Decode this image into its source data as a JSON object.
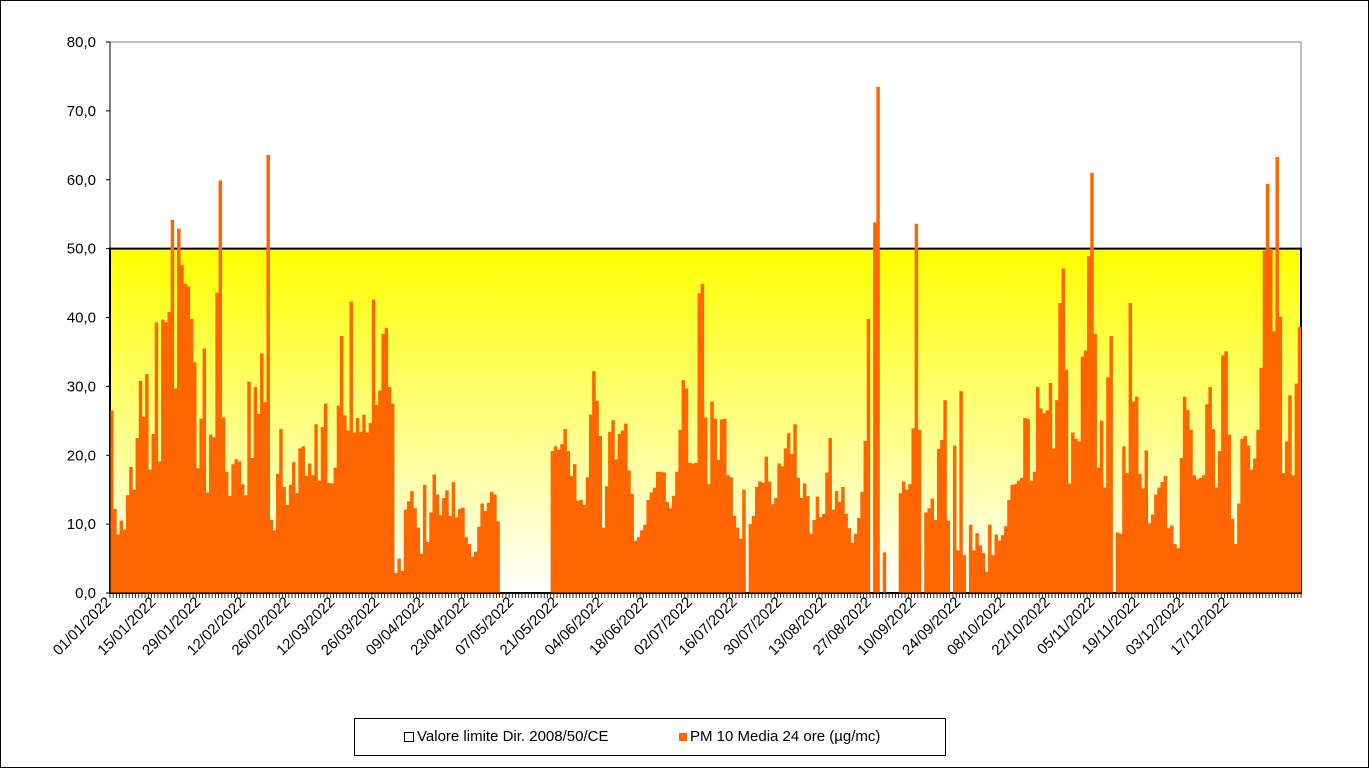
{
  "chart_data": {
    "type": "bar",
    "title": "",
    "xlabel": "",
    "ylabel": "",
    "ylim": [
      0,
      80
    ],
    "y_ticks": [
      "0,0",
      "10,0",
      "20,0",
      "30,0",
      "40,0",
      "50,0",
      "60,0",
      "70,0",
      "80,0"
    ],
    "x_tick_labels": [
      "01/01/2022",
      "15/01/2022",
      "29/01/2022",
      "12/02/2022",
      "26/02/2022",
      "12/03/2022",
      "26/03/2022",
      "09/04/2022",
      "23/04/2022",
      "07/05/2022",
      "21/05/2022",
      "04/06/2022",
      "18/06/2022",
      "02/07/2022",
      "16/07/2022",
      "30/07/2022",
      "13/08/2022",
      "27/08/2022",
      "10/09/2022",
      "24/09/2022",
      "08/10/2022",
      "22/10/2022",
      "05/11/2022",
      "19/11/2022",
      "03/12/2022",
      "17/12/2022"
    ],
    "x_start": "01/01/2022",
    "x_end": "31/12/2022",
    "grid": false,
    "legend_position": "bottom",
    "limit": {
      "name": "Valore limite Dir. 2008/50/CE",
      "value": 50,
      "color": "#FFFF00"
    },
    "series": [
      {
        "name": "PM 10 Media 24 ore (µg/mc)",
        "color": "#FF6600",
        "values": [
          26.5,
          12.2,
          8.5,
          10.5,
          9.2,
          14.2,
          18.3,
          15.0,
          22.5,
          30.8,
          25.6,
          31.8,
          17.9,
          23.1,
          39.3,
          19.1,
          39.7,
          39.3,
          40.8,
          54.2,
          29.7,
          52.9,
          47.6,
          44.9,
          44.5,
          39.8,
          33.5,
          18.1,
          25.3,
          35.5,
          14.6,
          23.0,
          22.6,
          43.6,
          59.9,
          25.5,
          17.6,
          14.1,
          18.7,
          19.4,
          19.1,
          15.8,
          14.2,
          30.7,
          19.6,
          29.9,
          26.0,
          34.8,
          27.7,
          63.6,
          10.6,
          9.1,
          17.3,
          23.8,
          15.4,
          12.8,
          15.7,
          19.0,
          14.5,
          21.0,
          21.3,
          17.0,
          18.8,
          17.1,
          24.5,
          16.3,
          24.1,
          27.5,
          16.0,
          15.9,
          18.2,
          27.2,
          37.3,
          25.8,
          23.6,
          42.3,
          23.3,
          25.4,
          23.4,
          25.9,
          23.3,
          24.7,
          42.6,
          27.3,
          29.4,
          37.6,
          38.5,
          29.9,
          27.5,
          2.9,
          5.0,
          3.2,
          12.1,
          13.3,
          14.8,
          12.3,
          9.5,
          5.7,
          15.7,
          7.4,
          11.7,
          17.2,
          14.3,
          11.3,
          13.8,
          14.9,
          11.2,
          16.1,
          11.0,
          12.2,
          12.4,
          8.1,
          7.1,
          5.3,
          6.0,
          9.6,
          13.0,
          11.9,
          13.1,
          14.7,
          14.3,
          10.4,
          null,
          null,
          null,
          null,
          null,
          null,
          null,
          null,
          null,
          null,
          null,
          null,
          null,
          null,
          null,
          null,
          20.6,
          21.3,
          20.8,
          21.6,
          23.8,
          20.6,
          17.0,
          18.7,
          13.4,
          13.5,
          12.8,
          16.8,
          25.9,
          32.2,
          27.9,
          22.8,
          9.5,
          15.5,
          23.4,
          25.1,
          19.4,
          23.1,
          23.6,
          24.6,
          17.8,
          14.4,
          7.6,
          8.1,
          9.1,
          9.9,
          13.5,
          14.6,
          15.3,
          17.6,
          17.6,
          17.5,
          13.2,
          12.3,
          14.1,
          17.6,
          23.7,
          30.9,
          29.7,
          18.9,
          18.8,
          18.9,
          43.5,
          44.9,
          25.5,
          15.8,
          27.8,
          25.3,
          19.3,
          25.2,
          25.3,
          17.1,
          16.8,
          11.2,
          9.5,
          7.9,
          15.0,
          null,
          10.0,
          11.2,
          15.4,
          16.2,
          16.0,
          19.8,
          16.2,
          12.9,
          13.8,
          18.8,
          18.4,
          21.0,
          23.2,
          20.2,
          24.5,
          16.7,
          13.8,
          15.9,
          14.1,
          8.6,
          10.6,
          14.0,
          11.0,
          11.5,
          17.5,
          22.5,
          12.1,
          14.8,
          13.2,
          15.4,
          11.5,
          9.4,
          7.3,
          8.6,
          10.9,
          14.7,
          22.1,
          39.8,
          null,
          53.8,
          73.5,
          null,
          5.9,
          null,
          null,
          null,
          null,
          14.5,
          16.2,
          15.0,
          15.8,
          23.9,
          53.6,
          23.7,
          null,
          11.7,
          12.3,
          13.7,
          10.6,
          20.9,
          22.2,
          28.0,
          10.5,
          null,
          21.4,
          6.2,
          29.3,
          5.5,
          null,
          9.9,
          6.2,
          8.7,
          6.9,
          5.8,
          3.1,
          9.9,
          5.5,
          8.5,
          7.6,
          8.4,
          9.7,
          13.5,
          15.7,
          15.8,
          16.3,
          16.7,
          25.4,
          25.3,
          16.3,
          17.6,
          29.9,
          26.8,
          26.1,
          26.5,
          30.5,
          21.0,
          28.0,
          42.1,
          47.1,
          32.4,
          15.9,
          23.3,
          22.4,
          22.0,
          34.3,
          35.2,
          48.9,
          61.0,
          37.6,
          18.2,
          25.0,
          15.3,
          31.3,
          37.3,
          null,
          8.8,
          8.6,
          21.3,
          17.4,
          42.1,
          27.8,
          28.5,
          17.3,
          15.2,
          20.7,
          10.1,
          11.4,
          14.3,
          15.3,
          16.1,
          17.0,
          9.4,
          9.8,
          7.1,
          6.5,
          19.6,
          28.5,
          26.6,
          23.7,
          17.1,
          16.5,
          16.7,
          17.1,
          27.4,
          29.9,
          23.8,
          15.3,
          20.6,
          34.5,
          35.1,
          23.0,
          10.8,
          7.1,
          13.0,
          22.4,
          22.8,
          21.4,
          17.9,
          19.5,
          23.7,
          32.7,
          49.7,
          59.4,
          50.0,
          38.0,
          63.3,
          40.1,
          17.4,
          22.0,
          28.7,
          17.1,
          30.4,
          38.6
        ]
      }
    ]
  }
}
